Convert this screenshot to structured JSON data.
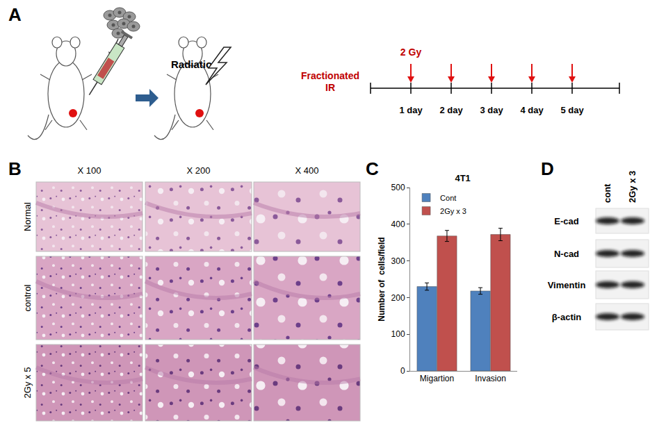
{
  "panels": {
    "A": {
      "label": "A",
      "annotation": "Radiation",
      "schedule_title": [
        "Fractionated",
        "IR"
      ],
      "dose": "2 Gy",
      "days": [
        "1 day",
        "2 day",
        "3 day",
        "4 day",
        "5 day"
      ]
    },
    "B": {
      "label": "B",
      "columns": [
        "X 100",
        "X 200",
        "X 400"
      ],
      "rows": [
        "Normal",
        "control",
        "2Gy x 5"
      ]
    },
    "C": {
      "label": "C"
    },
    "D": {
      "label": "D",
      "lanes": [
        "cont",
        "2Gy x 3"
      ],
      "proteins": [
        "E-cad",
        "N-cad",
        "Vimentin",
        "β-actin"
      ]
    }
  },
  "chart_data": {
    "type": "bar",
    "title": "4T1",
    "categories": [
      "Migartion",
      "Invasion"
    ],
    "series": [
      {
        "name": "Cont",
        "color": "#4f81bd",
        "values": [
          230,
          218
        ],
        "errors": [
          10,
          9
        ]
      },
      {
        "name": "2Gy x 3",
        "color": "#c0504d",
        "values": [
          368,
          372
        ],
        "errors": [
          15,
          17
        ]
      }
    ],
    "y_label": "Number of  cells/field",
    "ylim": [
      0,
      500
    ],
    "yticks": [
      0,
      100,
      200,
      300,
      400,
      500
    ],
    "grid": false,
    "legend": "upper left"
  }
}
